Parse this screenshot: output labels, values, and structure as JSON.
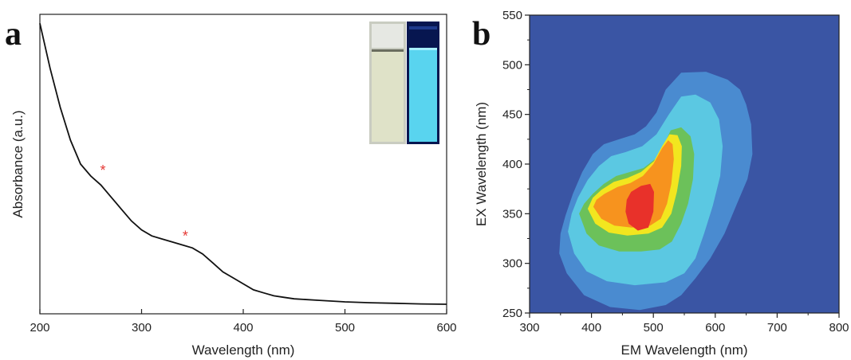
{
  "chart_data": [
    {
      "panel_label": "a",
      "type": "line",
      "xlabel": "Wavelength (nm)",
      "ylabel": "Absorbance (a.u.)",
      "xlim": [
        200,
        600
      ],
      "xticks": [
        200,
        300,
        400,
        500,
        600
      ],
      "ylim": [
        0,
        1
      ],
      "show_y_tick_labels": false,
      "grid": false,
      "series": [
        {
          "color": "#111111",
          "x": [
            200,
            210,
            220,
            230,
            240,
            250,
            260,
            270,
            280,
            290,
            300,
            310,
            320,
            330,
            340,
            350,
            360,
            370,
            380,
            390,
            400,
            410,
            420,
            430,
            440,
            450,
            475,
            500,
            525,
            550,
            575,
            600
          ],
          "y": [
            0.97,
            0.82,
            0.69,
            0.58,
            0.5,
            0.46,
            0.43,
            0.39,
            0.35,
            0.31,
            0.28,
            0.26,
            0.25,
            0.24,
            0.23,
            0.22,
            0.2,
            0.17,
            0.14,
            0.12,
            0.1,
            0.08,
            0.07,
            0.06,
            0.055,
            0.05,
            0.045,
            0.04,
            0.037,
            0.035,
            0.033,
            0.032
          ]
        }
      ],
      "annotations": [
        {
          "text": "*",
          "x": 262,
          "y": 0.49,
          "color": "#e53935"
        },
        {
          "text": "*",
          "x": 343,
          "y": 0.27,
          "color": "#e53935"
        }
      ],
      "inset": {
        "content": "photo of two cuvettes",
        "left_cuvette_color": "#dfe2c8",
        "right_cuvette_color": "#59d4ef"
      }
    },
    {
      "panel_label": "b",
      "type": "heatmap",
      "xlabel": "EM Wavelength (nm)",
      "ylabel": "EX Wavelength (nm)",
      "xlim": [
        300,
        800
      ],
      "ylim": [
        250,
        550
      ],
      "xticks": [
        300,
        400,
        500,
        600,
        700,
        800
      ],
      "yticks": [
        250,
        300,
        350,
        400,
        450,
        500,
        550
      ],
      "grid": false,
      "peak": {
        "em": 480,
        "ex": 355
      },
      "levels": [
        {
          "color": "#3a55a4",
          "region": [
            [
              300,
              250
            ],
            [
              800,
              250
            ],
            [
              800,
              550
            ],
            [
              300,
              550
            ]
          ]
        },
        {
          "color": "#4a8bd0",
          "region": [
            [
              348,
              310
            ],
            [
              360,
              290
            ],
            [
              388,
              268
            ],
            [
              430,
              256
            ],
            [
              478,
              253
            ],
            [
              520,
              258
            ],
            [
              545,
              268
            ],
            [
              568,
              285
            ],
            [
              592,
              305
            ],
            [
              615,
              330
            ],
            [
              635,
              360
            ],
            [
              652,
              385
            ],
            [
              660,
              410
            ],
            [
              658,
              440
            ],
            [
              650,
              460
            ],
            [
              640,
              475
            ],
            [
              620,
              485
            ],
            [
              585,
              493
            ],
            [
              545,
              492
            ],
            [
              520,
              475
            ],
            [
              505,
              452
            ],
            [
              488,
              438
            ],
            [
              470,
              430
            ],
            [
              445,
              425
            ],
            [
              420,
              420
            ],
            [
              402,
              410
            ],
            [
              385,
              392
            ],
            [
              370,
              370
            ],
            [
              358,
              348
            ],
            [
              350,
              330
            ]
          ]
        },
        {
          "color": "#5bc8e2",
          "region": [
            [
              362,
              332
            ],
            [
              372,
              310
            ],
            [
              392,
              292
            ],
            [
              425,
              282
            ],
            [
              470,
              278
            ],
            [
              520,
              281
            ],
            [
              550,
              290
            ],
            [
              568,
              305
            ],
            [
              582,
              330
            ],
            [
              596,
              358
            ],
            [
              608,
              388
            ],
            [
              612,
              418
            ],
            [
              606,
              445
            ],
            [
              592,
              462
            ],
            [
              568,
              470
            ],
            [
              545,
              468
            ],
            [
              525,
              450
            ],
            [
              505,
              430
            ],
            [
              482,
              418
            ],
            [
              455,
              412
            ],
            [
              432,
              408
            ],
            [
              412,
              398
            ],
            [
              394,
              384
            ],
            [
              378,
              366
            ],
            [
              368,
              350
            ]
          ]
        },
        {
          "color": "#6cc15a",
          "region": [
            [
              380,
              350
            ],
            [
              392,
              330
            ],
            [
              412,
              318
            ],
            [
              445,
              312
            ],
            [
              480,
              312
            ],
            [
              510,
              314
            ],
            [
              530,
              322
            ],
            [
              545,
              340
            ],
            [
              556,
              360
            ],
            [
              564,
              385
            ],
            [
              566,
              410
            ],
            [
              560,
              428
            ],
            [
              545,
              437
            ],
            [
              528,
              434
            ],
            [
              516,
              418
            ],
            [
              503,
              405
            ],
            [
              484,
              396
            ],
            [
              462,
              392
            ],
            [
              440,
              388
            ],
            [
              420,
              380
            ],
            [
              402,
              370
            ],
            [
              388,
              360
            ]
          ]
        },
        {
          "color": "#f2e61f",
          "region": [
            [
              394,
              355
            ],
            [
              406,
              340
            ],
            [
              428,
              331
            ],
            [
              458,
              328
            ],
            [
              492,
              330
            ],
            [
              514,
              336
            ],
            [
              529,
              350
            ],
            [
              538,
              372
            ],
            [
              545,
              398
            ],
            [
              546,
              418
            ],
            [
              539,
              429
            ],
            [
              526,
              430
            ],
            [
              514,
              418
            ],
            [
              501,
              403
            ],
            [
              480,
              392
            ],
            [
              458,
              386
            ],
            [
              436,
              382
            ],
            [
              416,
              374
            ],
            [
              402,
              366
            ]
          ]
        },
        {
          "color": "#f7931e",
          "region": [
            [
              403,
              357
            ],
            [
              416,
              345
            ],
            [
              437,
              338
            ],
            [
              465,
              336
            ],
            [
              495,
              338
            ],
            [
              512,
              345
            ],
            [
              522,
              360
            ],
            [
              529,
              380
            ],
            [
              533,
              405
            ],
            [
              531,
              420
            ],
            [
              524,
              424
            ],
            [
              514,
              416
            ],
            [
              500,
              400
            ],
            [
              483,
              388
            ],
            [
              463,
              381
            ],
            [
              442,
              377
            ],
            [
              421,
              370
            ],
            [
              408,
              364
            ]
          ]
        },
        {
          "color": "#e8312a",
          "region": [
            [
              455,
              352
            ],
            [
              460,
              340
            ],
            [
              475,
              333
            ],
            [
              492,
              336
            ],
            [
              500,
              352
            ],
            [
              501,
              372
            ],
            [
              495,
              380
            ],
            [
              480,
              378
            ],
            [
              464,
              372
            ],
            [
              457,
              364
            ]
          ]
        }
      ]
    }
  ]
}
